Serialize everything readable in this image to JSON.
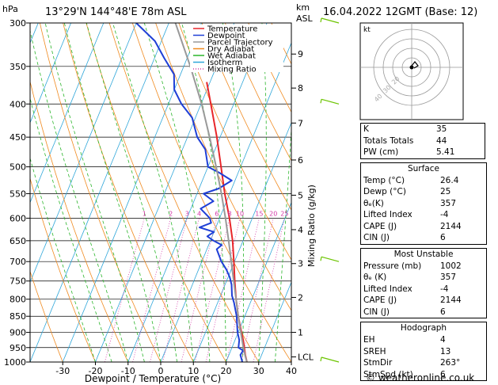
{
  "header": {
    "hpa_label": "hPa",
    "location": "13°29'N 144°48'E 78m ASL",
    "km_label": "km",
    "asl_label": "ASL",
    "datetime": "16.04.2022 12GMT (Base: 12)"
  },
  "colors": {
    "temperature": "#e8262a",
    "dewpoint": "#1f3fd6",
    "parcel": "#999999",
    "dry_adiabat": "#f08a1f",
    "wet_adiabat": "#2ab52a",
    "isotherm": "#2ea6d9",
    "mixing_ratio": "#d43aa8"
  },
  "chart_data": {
    "type": "line",
    "title": "",
    "xlabel": "Dewpoint / Temperature (°C)",
    "ylabel": "",
    "right_axis_label": "Mixing Ratio (g/kg)",
    "xlim": [
      -40,
      40
    ],
    "ylim_hpa": [
      1000,
      300
    ],
    "x_ticks": [
      "-30",
      "-20",
      "-10",
      "0",
      "10",
      "20",
      "30",
      "40"
    ],
    "pressure_ticks": [
      "300",
      "350",
      "400",
      "450",
      "500",
      "550",
      "600",
      "650",
      "700",
      "750",
      "800",
      "850",
      "900",
      "950",
      "1000"
    ],
    "height_ticks": [
      {
        "label": "9",
        "p": 335
      },
      {
        "label": "8",
        "p": 378
      },
      {
        "label": "7",
        "p": 428
      },
      {
        "label": "6",
        "p": 488
      },
      {
        "label": "5",
        "p": 553
      },
      {
        "label": "4",
        "p": 625
      },
      {
        "label": "3",
        "p": 705
      },
      {
        "label": "2",
        "p": 795
      },
      {
        "label": "1",
        "p": 900
      },
      {
        "label": "LCL",
        "p": 982
      }
    ],
    "mixing_ratio_labels": [
      "1",
      "2",
      "3",
      "4",
      "6",
      "8",
      "10",
      "15",
      "20",
      "25"
    ],
    "legend": [
      "Temperature",
      "Dewpoint",
      "Parcel Trajectory",
      "Dry Adiabat",
      "Wet Adiabat",
      "Isotherm",
      "Mixing Ratio"
    ],
    "series": [
      {
        "name": "Temperature",
        "points": [
          [
            1000,
            26.4
          ],
          [
            975,
            25.0
          ],
          [
            950,
            23.8
          ],
          [
            925,
            22.5
          ],
          [
            900,
            21.0
          ],
          [
            850,
            18.0
          ],
          [
            800,
            15.2
          ],
          [
            750,
            12.5
          ],
          [
            700,
            9.8
          ],
          [
            650,
            6.8
          ],
          [
            600,
            3.0
          ],
          [
            550,
            -1.5
          ],
          [
            500,
            -6.0
          ],
          [
            450,
            -11.0
          ],
          [
            400,
            -17.0
          ],
          [
            370,
            -21.0
          ]
        ]
      },
      {
        "name": "Dewpoint",
        "points": [
          [
            1000,
            25.0
          ],
          [
            975,
            23.5
          ],
          [
            960,
            23.8
          ],
          [
            950,
            22.0
          ],
          [
            925,
            21.3
          ],
          [
            900,
            19.8
          ],
          [
            850,
            17.5
          ],
          [
            810,
            15.0
          ],
          [
            790,
            13.5
          ],
          [
            760,
            12.0
          ],
          [
            740,
            10.5
          ],
          [
            720,
            8.5
          ],
          [
            700,
            6.0
          ],
          [
            690,
            5.0
          ],
          [
            670,
            3.0
          ],
          [
            660,
            4.0
          ],
          [
            650,
            1.0
          ],
          [
            640,
            -1.5
          ],
          [
            630,
            0.0
          ],
          [
            620,
            -5.0
          ],
          [
            610,
            -2.0
          ],
          [
            600,
            -3.0
          ],
          [
            580,
            -7.0
          ],
          [
            565,
            -4.0
          ],
          [
            550,
            -8.0
          ],
          [
            540,
            -4.0
          ],
          [
            525,
            -1.0
          ],
          [
            510,
            -6.0
          ],
          [
            500,
            -10.0
          ],
          [
            470,
            -13.0
          ],
          [
            450,
            -17.0
          ],
          [
            420,
            -21.0
          ],
          [
            400,
            -26.0
          ],
          [
            380,
            -30.0
          ],
          [
            360,
            -32.0
          ],
          [
            340,
            -37.0
          ],
          [
            320,
            -42.0
          ],
          [
            300,
            -50.0
          ]
        ]
      },
      {
        "name": "Parcel Trajectory",
        "points": [
          [
            1000,
            26.4
          ],
          [
            982,
            25.3
          ],
          [
            950,
            23.5
          ],
          [
            900,
            20.8
          ],
          [
            850,
            18.0
          ],
          [
            800,
            15.2
          ],
          [
            750,
            12.2
          ],
          [
            700,
            9.0
          ],
          [
            650,
            5.6
          ],
          [
            600,
            1.8
          ],
          [
            550,
            -2.5
          ],
          [
            500,
            -7.5
          ],
          [
            450,
            -13.2
          ],
          [
            400,
            -19.8
          ],
          [
            350,
            -28.0
          ],
          [
            300,
            -38.0
          ]
        ]
      }
    ],
    "wind_barbs": [
      {
        "p": 300,
        "speed_kt": 5
      },
      {
        "p": 400,
        "speed_kt": 5
      },
      {
        "p": 700,
        "speed_kt": 5
      },
      {
        "p": 1000,
        "speed_kt": 5
      }
    ]
  },
  "hodograph": {
    "kt_label": "kt",
    "ring_labels": [
      "40",
      "30",
      "20"
    ]
  },
  "indices": [
    {
      "label": "K",
      "value": "35"
    },
    {
      "label": "Totals Totals",
      "value": "44"
    },
    {
      "label": "PW (cm)",
      "value": "5.41"
    }
  ],
  "surface": {
    "title": "Surface",
    "rows": [
      {
        "label": "Temp (°C)",
        "value": "26.4"
      },
      {
        "label": "Dewp (°C)",
        "value": "25"
      },
      {
        "label": "θₑ(K)",
        "value": "357"
      },
      {
        "label": "Lifted Index",
        "value": "-4"
      },
      {
        "label": "CAPE (J)",
        "value": "2144"
      },
      {
        "label": "CIN (J)",
        "value": "6"
      }
    ]
  },
  "most_unstable": {
    "title": "Most Unstable",
    "rows": [
      {
        "label": "Pressure (mb)",
        "value": "1002"
      },
      {
        "label": "θₑ (K)",
        "value": "357"
      },
      {
        "label": "Lifted Index",
        "value": "-4"
      },
      {
        "label": "CAPE (J)",
        "value": "2144"
      },
      {
        "label": "CIN (J)",
        "value": "6"
      }
    ]
  },
  "hodograph_table": {
    "title": "Hodograph",
    "rows": [
      {
        "label": "EH",
        "value": "4"
      },
      {
        "label": "SREH",
        "value": "13"
      },
      {
        "label": "StmDir",
        "value": "263°"
      },
      {
        "label": "StmSpd (kt)",
        "value": "6"
      }
    ]
  },
  "footer": {
    "credit": "© weatheronline.co.uk"
  }
}
